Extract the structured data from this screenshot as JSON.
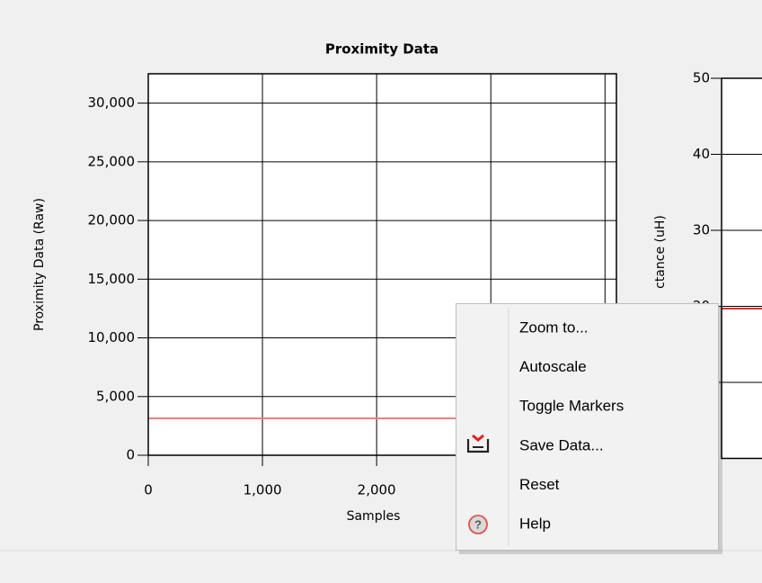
{
  "chart_data": [
    {
      "type": "line",
      "title": "Proximity Data",
      "xlabel": "Samples",
      "ylabel": "Proximity Data (Raw)",
      "x": [
        0,
        4100
      ],
      "series": [
        {
          "color": "#f08080",
          "values": [
            3140,
            3140
          ]
        }
      ],
      "xlim": [
        0,
        4100
      ],
      "xticks": [
        0,
        {
          "value": 1000,
          "label": "1,000"
        },
        {
          "value": 2000,
          "label": "2,000"
        }
      ],
      "ylim": [
        0,
        32500
      ],
      "yticks": [
        0,
        {
          "value": 5000,
          "label": "5,000"
        },
        {
          "value": 10000,
          "label": "10,000"
        },
        {
          "value": 15000,
          "label": "15,000"
        },
        {
          "value": 20000,
          "label": "20,000"
        },
        {
          "value": 25000,
          "label": "25,000"
        },
        {
          "value": 30000,
          "label": "30,000"
        }
      ],
      "grid": true
    },
    {
      "type": "line",
      "ylabel": "ctance (uH)",
      "x": [
        0,
        1000
      ],
      "series": [
        {
          "color": "#e03030",
          "values": [
            19.7,
            19.7
          ]
        }
      ],
      "xlim": [
        0,
        1000
      ],
      "ylim": [
        0,
        50
      ],
      "yticks": [
        10,
        20,
        30,
        40,
        50
      ],
      "grid": true
    }
  ],
  "context_menu": {
    "items": [
      "Zoom to...",
      "Autoscale",
      "Toggle Markers",
      "Save Data...",
      "Reset",
      "Help"
    ]
  }
}
